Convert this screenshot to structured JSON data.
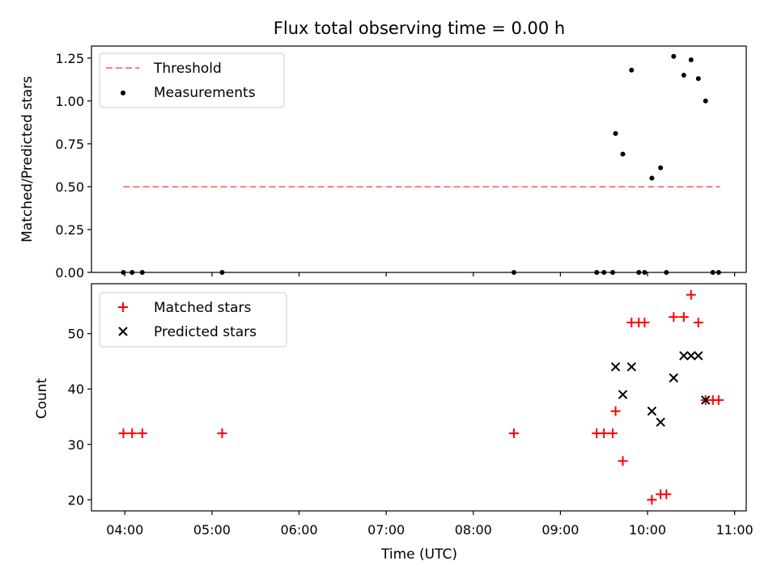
{
  "chart_data": [
    {
      "type": "scatter",
      "title": "Flux total observing time = 0.00 h",
      "xlabel": "",
      "ylabel": "Matched/Predicted stars",
      "ylim": [
        0,
        1.32
      ],
      "yticks": [
        0,
        0.25,
        0.5,
        0.75,
        1.0,
        1.25
      ],
      "ytick_labels": [
        "0.00",
        "0.25",
        "0.50",
        "0.75",
        "1.00",
        "1.25"
      ],
      "xlim": [
        "03:37",
        "11:08"
      ],
      "grid": false,
      "legend_position": "top-left",
      "series": [
        {
          "name": "Threshold",
          "kind": "dashed-line",
          "color": "#ff7f7f",
          "x": [
            "03:59",
            "10:50"
          ],
          "y": [
            0.5,
            0.5
          ]
        },
        {
          "name": "Measurements",
          "kind": "points",
          "color": "#000000",
          "x": [
            "03:59",
            "04:05",
            "04:12",
            "05:07",
            "08:28",
            "09:25",
            "09:30",
            "09:36",
            "09:38",
            "09:43",
            "09:49",
            "09:54",
            "09:58",
            "10:03",
            "10:09",
            "10:13",
            "10:18",
            "10:25",
            "10:30",
            "10:35",
            "10:40",
            "10:45",
            "10:49"
          ],
          "y": [
            0,
            0,
            0,
            0,
            0,
            0,
            0,
            0,
            0.81,
            0.69,
            1.18,
            0,
            0,
            0.55,
            0.61,
            0,
            1.26,
            1.15,
            1.24,
            1.13,
            1.0,
            0,
            0
          ]
        }
      ]
    },
    {
      "type": "scatter",
      "title": "",
      "xlabel": "Time (UTC)",
      "ylabel": "Count",
      "ylim": [
        18,
        59
      ],
      "yticks": [
        20,
        30,
        40,
        50
      ],
      "ytick_labels": [
        "20",
        "30",
        "40",
        "50"
      ],
      "xlim": [
        "03:37",
        "11:08"
      ],
      "xticks": [
        "04:00",
        "05:00",
        "06:00",
        "07:00",
        "08:00",
        "09:00",
        "10:00",
        "11:00"
      ],
      "xtick_labels": [
        "04:00",
        "05:00",
        "06:00",
        "07:00",
        "08:00",
        "09:00",
        "10:00",
        "11:00"
      ],
      "grid": false,
      "legend_position": "top-left",
      "series": [
        {
          "name": "Matched stars",
          "marker": "plus",
          "color": "#ff0000",
          "x": [
            "03:59",
            "04:05",
            "04:12",
            "05:07",
            "08:28",
            "09:25",
            "09:30",
            "09:36",
            "09:38",
            "09:43",
            "09:49",
            "09:54",
            "09:58",
            "10:03",
            "10:09",
            "10:13",
            "10:18",
            "10:25",
            "10:30",
            "10:35",
            "10:40",
            "10:45",
            "10:49"
          ],
          "y": [
            32,
            32,
            32,
            32,
            32,
            32,
            32,
            32,
            36,
            27,
            52,
            52,
            52,
            20,
            21,
            21,
            53,
            53,
            57,
            52,
            38,
            38,
            38
          ]
        },
        {
          "name": "Predicted stars",
          "marker": "x",
          "color": "#000000",
          "x": [
            "09:38",
            "09:43",
            "09:49",
            "10:03",
            "10:09",
            "10:18",
            "10:25",
            "10:30",
            "10:35",
            "10:40"
          ],
          "y": [
            44,
            39,
            44,
            36,
            34,
            42,
            46,
            46,
            46,
            38
          ]
        }
      ]
    }
  ]
}
